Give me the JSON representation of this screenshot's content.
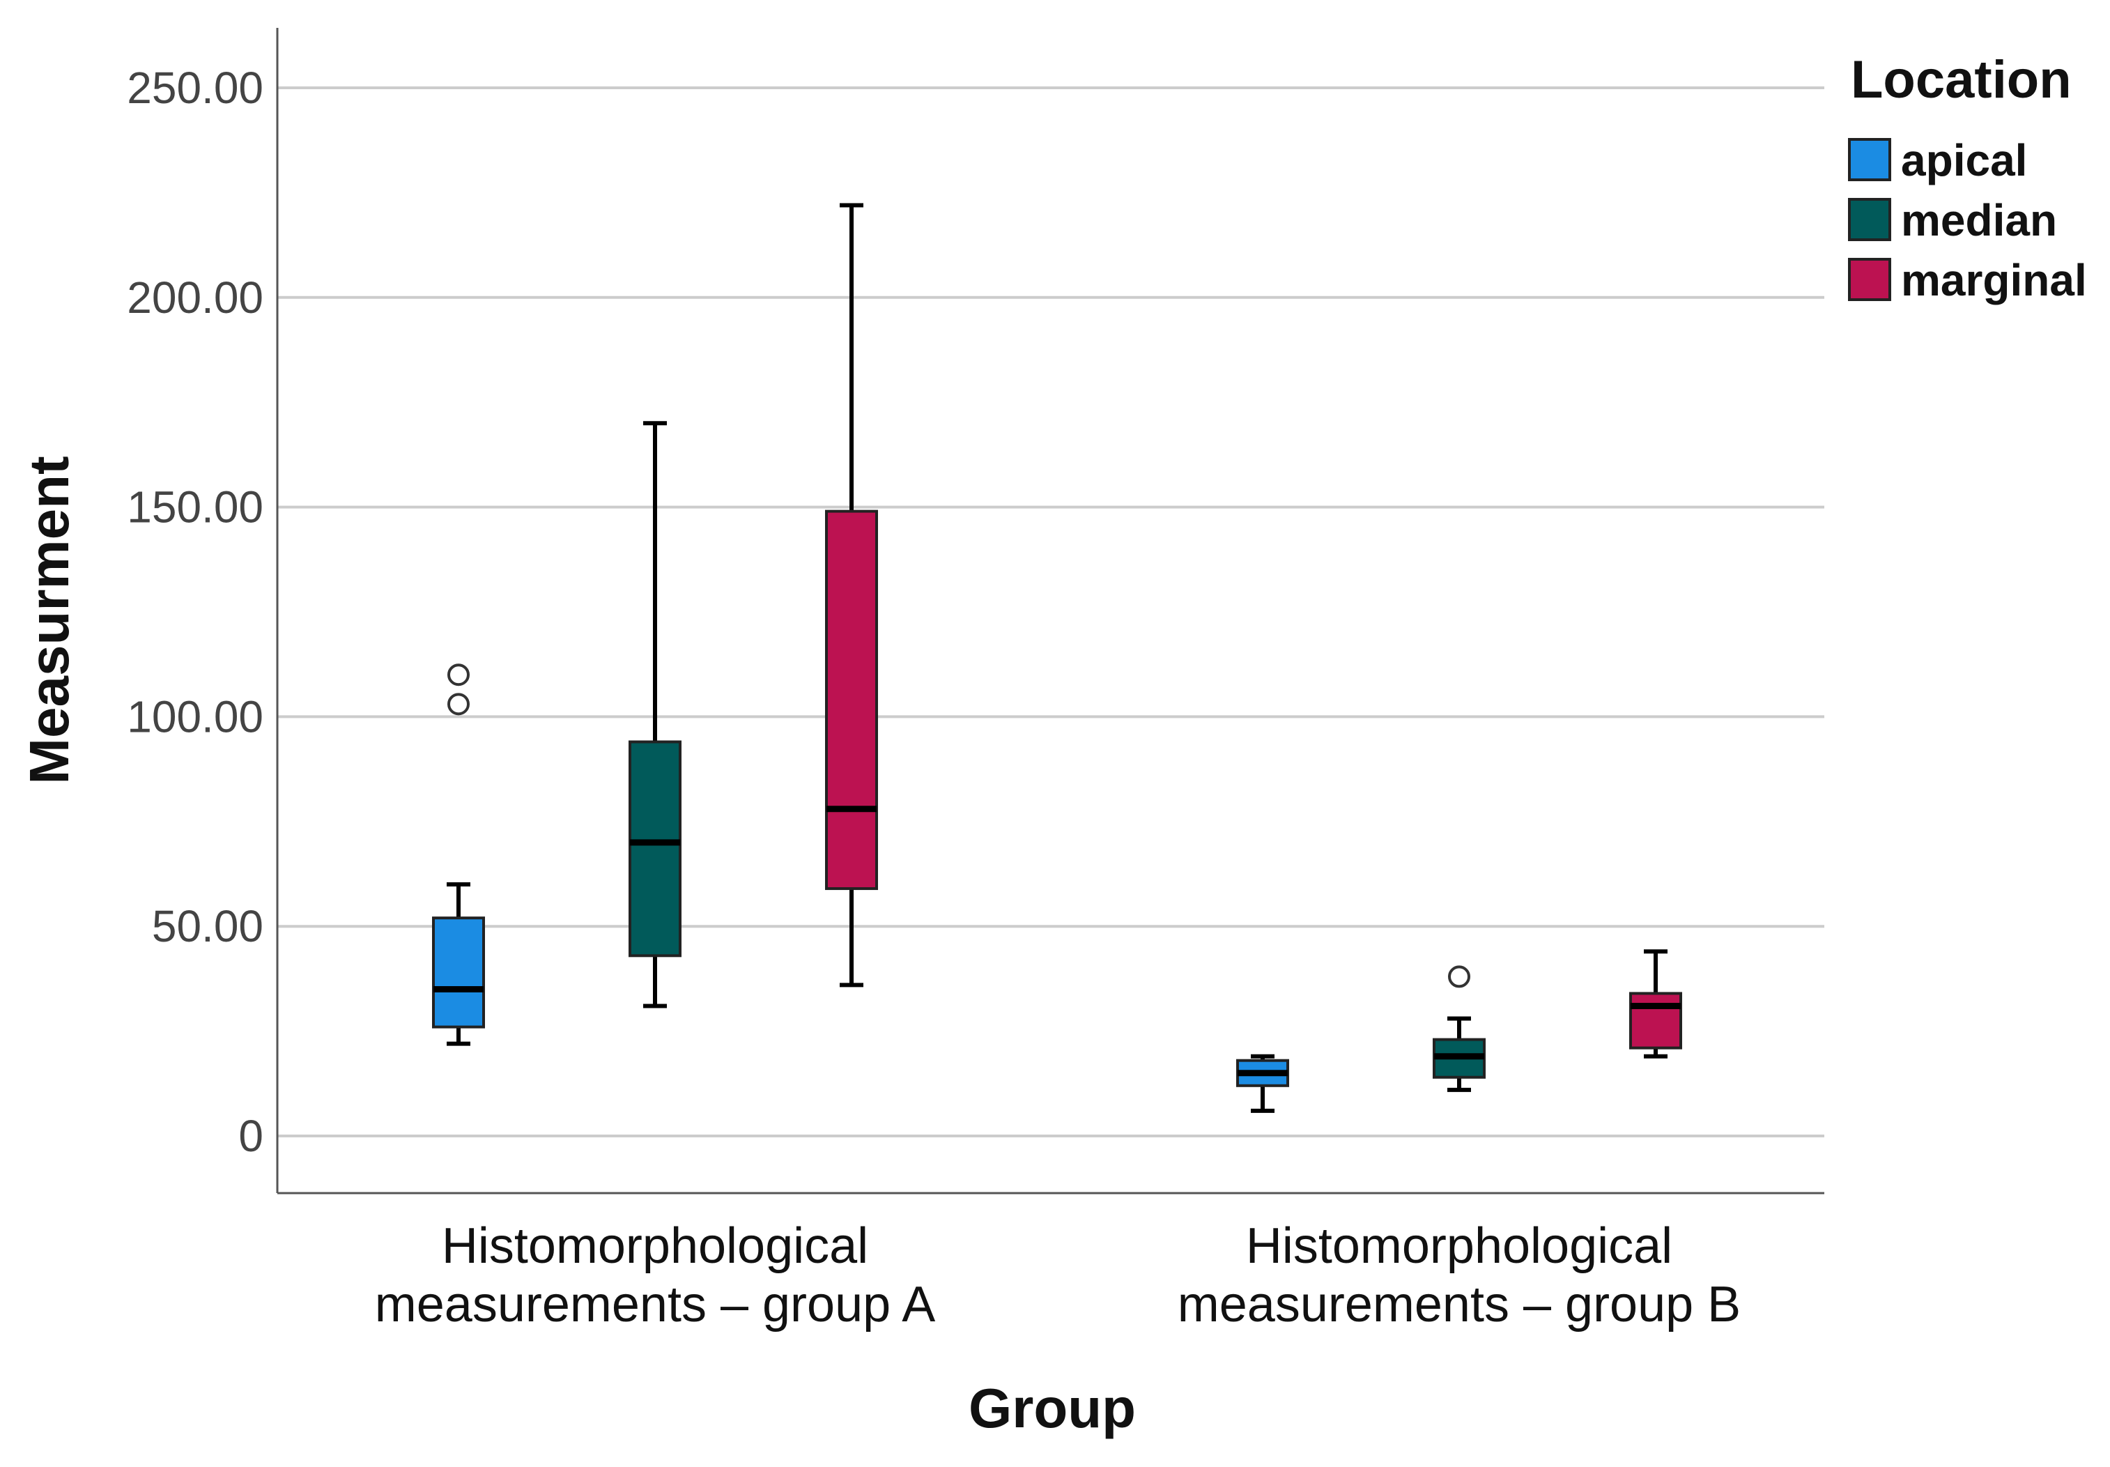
{
  "chart_data": {
    "type": "boxplot",
    "xlabel": "Group",
    "ylabel": "Measurment",
    "ylim": [
      -13,
      265
    ],
    "grid": true,
    "legend_title": "Location",
    "legend_position": "top-right",
    "y_ticks": [
      {
        "value": 0,
        "label": "0"
      },
      {
        "value": 50,
        "label": "50.00"
      },
      {
        "value": 100,
        "label": "100.00"
      },
      {
        "value": 150,
        "label": "150.00"
      },
      {
        "value": 200,
        "label": "200.00"
      },
      {
        "value": 250,
        "label": "250.00"
      }
    ],
    "categories": [
      {
        "line1": "Histomorphological",
        "line2": "measurements – group A"
      },
      {
        "line1": "Histomorphological",
        "line2": "measurements – group B"
      }
    ],
    "series": [
      {
        "name": "apical",
        "color": "#1b8ce3",
        "boxes": [
          {
            "min": 22,
            "q1": 26,
            "median": 35,
            "q3": 52,
            "max": 60,
            "outliers": [
              103,
              110
            ]
          },
          {
            "min": 6,
            "q1": 12,
            "median": 15,
            "q3": 18,
            "max": 19,
            "outliers": []
          }
        ]
      },
      {
        "name": "median",
        "color": "#015a5a",
        "boxes": [
          {
            "min": 31,
            "q1": 43,
            "median": 70,
            "q3": 94,
            "max": 170,
            "outliers": []
          },
          {
            "min": 11,
            "q1": 14,
            "median": 19,
            "q3": 23,
            "max": 28,
            "outliers": [
              38
            ]
          }
        ]
      },
      {
        "name": "marginal",
        "color": "#bc1251",
        "boxes": [
          {
            "min": 36,
            "q1": 59,
            "median": 78,
            "q3": 149,
            "max": 222,
            "outliers": []
          },
          {
            "min": 19,
            "q1": 21,
            "median": 31,
            "q3": 34,
            "max": 44,
            "outliers": []
          }
        ]
      }
    ]
  }
}
